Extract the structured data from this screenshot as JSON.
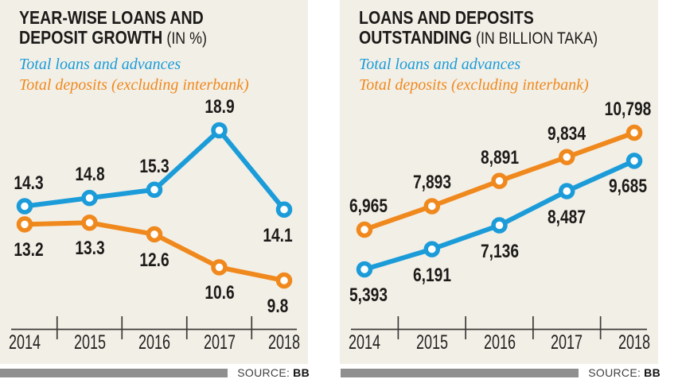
{
  "colors": {
    "loans": "#1b9cd9",
    "deposits": "#f0891d",
    "ink": "#1d1b19",
    "axis": "#3b3a37",
    "panel_background": "#f2efe7",
    "source_bar": "#8f8f8f"
  },
  "source": {
    "label": "SOURCE:",
    "value": "BB"
  },
  "chart_data": [
    {
      "type": "line",
      "title_line1": "YEAR-WISE LOANS AND",
      "title_line2": "DEPOSIT GROWTH",
      "unit_suffix": "(IN %)",
      "categories": [
        "2014",
        "2015",
        "2016",
        "2017",
        "2018"
      ],
      "series": [
        {
          "key": "loans",
          "name": "Total loans and advances",
          "values": [
            14.3,
            14.8,
            15.3,
            18.9,
            14.1
          ],
          "point_labels": [
            "14.3",
            "14.8",
            "15.3",
            "18.9",
            "14.1"
          ],
          "label_side": "above",
          "label_side_overrides": {
            "4": "below"
          }
        },
        {
          "key": "deposits",
          "name": "Total deposits (excluding interbank)",
          "values": [
            13.2,
            13.3,
            12.6,
            10.6,
            9.8
          ],
          "point_labels": [
            "13.2",
            "13.3",
            "12.6",
            "10.6",
            "9.8"
          ],
          "label_side": "below"
        }
      ],
      "ylim": [
        9.8,
        18.9
      ],
      "grid": false,
      "legend_position": "top-left",
      "source": "BB"
    },
    {
      "type": "line",
      "title_line1": "LOANS AND DEPOSITS",
      "title_line2": "OUTSTANDING",
      "unit_suffix": "(IN BILLION TAKA)",
      "categories": [
        "2014",
        "2015",
        "2016",
        "2017",
        "2018"
      ],
      "series": [
        {
          "key": "loans",
          "name": "Total loans and advances",
          "values": [
            5393,
            6191,
            7136,
            8487,
            9685
          ],
          "point_labels": [
            "5,393",
            "6,191",
            "7,136",
            "8,487",
            "9,685"
          ],
          "label_side": "below"
        },
        {
          "key": "deposits",
          "name": "Total deposits (excluding interbank)",
          "values": [
            6965,
            7893,
            8891,
            9834,
            10798
          ],
          "point_labels": [
            "6,965",
            "7,893",
            "8,891",
            "9,834",
            "10,798"
          ],
          "label_side": "above"
        }
      ],
      "ylim": [
        5393,
        10798
      ],
      "grid": false,
      "legend_position": "top-left",
      "source": "BB"
    }
  ]
}
